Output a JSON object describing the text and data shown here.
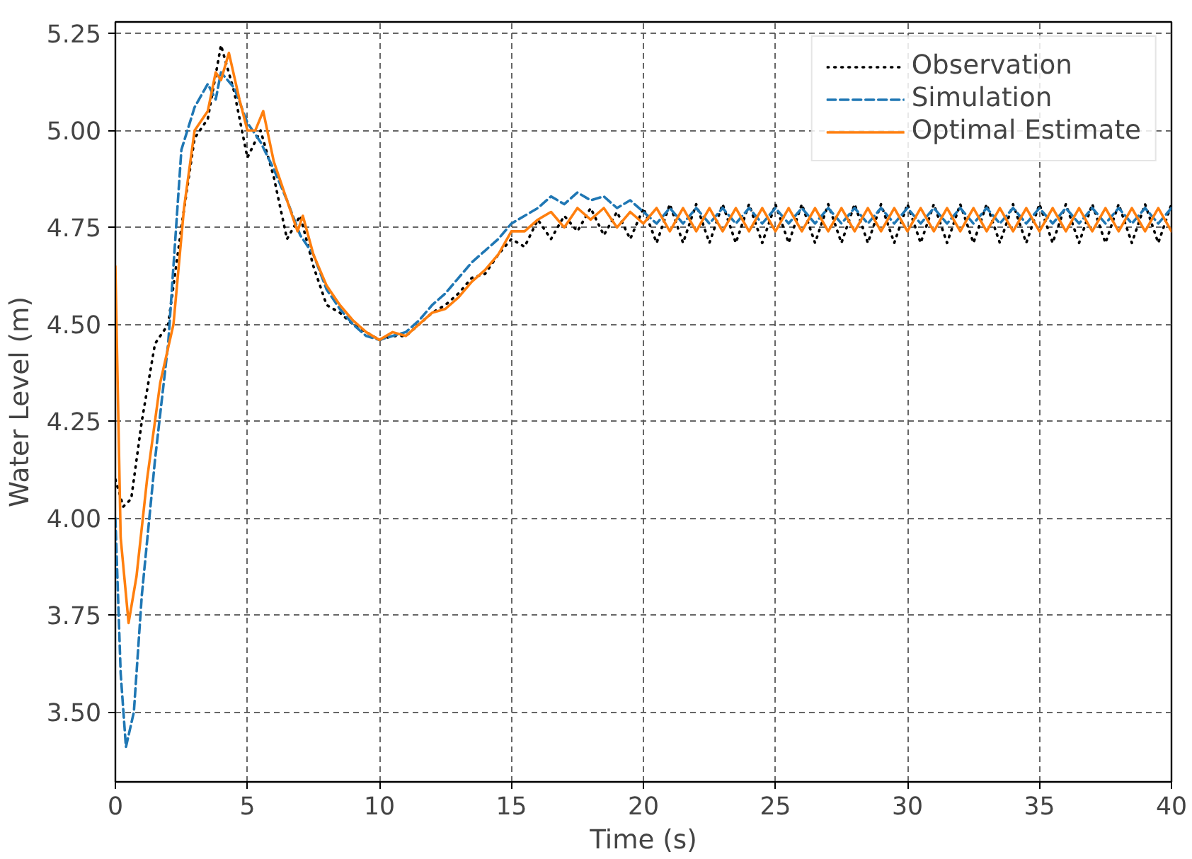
{
  "chart_data": {
    "type": "line",
    "xlabel": "Time (s)",
    "ylabel": "Water Level (m)",
    "xlim": [
      0,
      40
    ],
    "ylim": [
      3.32,
      5.28
    ],
    "xticks": [
      0,
      5,
      10,
      15,
      20,
      25,
      30,
      35,
      40
    ],
    "yticks": [
      {
        "value": 3.5,
        "label": "3.50"
      },
      {
        "value": 3.75,
        "label": "3.75"
      },
      {
        "value": 4.0,
        "label": "4.00"
      },
      {
        "value": 4.25,
        "label": "4.25"
      },
      {
        "value": 4.5,
        "label": "4.50"
      },
      {
        "value": 4.75,
        "label": "4.75"
      },
      {
        "value": 5.0,
        "label": "5.00"
      },
      {
        "value": 5.25,
        "label": "5.25"
      }
    ],
    "grid": true,
    "legend": "top right",
    "series": [
      {
        "name": "Observation",
        "color": "#000000",
        "line_style": "dotted",
        "x": [
          0,
          0.3,
          0.6,
          1,
          1.5,
          2,
          2.5,
          3,
          3.5,
          4,
          4.5,
          5,
          5.5,
          6,
          6.5,
          7,
          7.5,
          8,
          8.5,
          9,
          9.5,
          10,
          10.5,
          11,
          11.5,
          12,
          12.5,
          13,
          13.5,
          14,
          14.5,
          15,
          15.5,
          16,
          16.5,
          17,
          17.5,
          18,
          18.5,
          19,
          19.5,
          20,
          20.5,
          21,
          21.5,
          22,
          22.5,
          23,
          23.5,
          24,
          24.5,
          25,
          25.5,
          26,
          26.5,
          27,
          27.5,
          28,
          28.5,
          29,
          29.5,
          30,
          30.5,
          31,
          31.5,
          32,
          32.5,
          33,
          33.5,
          34,
          34.5,
          35,
          35.5,
          36,
          36.5,
          37,
          37.5,
          38,
          38.5,
          39,
          39.5,
          40
        ],
        "values": [
          4.1,
          4.03,
          4.05,
          4.25,
          4.45,
          4.5,
          4.75,
          4.98,
          5.03,
          5.22,
          5.1,
          4.93,
          5.0,
          4.88,
          4.72,
          4.78,
          4.65,
          4.55,
          4.53,
          4.5,
          4.48,
          4.46,
          4.47,
          4.47,
          4.5,
          4.53,
          4.55,
          4.58,
          4.62,
          4.63,
          4.68,
          4.72,
          4.7,
          4.77,
          4.72,
          4.78,
          4.74,
          4.8,
          4.73,
          4.79,
          4.72,
          4.8,
          4.71,
          4.81,
          4.71,
          4.81,
          4.71,
          4.81,
          4.71,
          4.81,
          4.71,
          4.81,
          4.71,
          4.81,
          4.71,
          4.81,
          4.71,
          4.81,
          4.71,
          4.81,
          4.71,
          4.81,
          4.71,
          4.81,
          4.71,
          4.81,
          4.71,
          4.81,
          4.71,
          4.81,
          4.71,
          4.81,
          4.71,
          4.81,
          4.71,
          4.81,
          4.71,
          4.81,
          4.71,
          4.81,
          4.71,
          4.81
        ]
      },
      {
        "name": "Simulation",
        "color": "#1f77b4",
        "line_style": "dashed",
        "x": [
          0,
          0.2,
          0.4,
          0.7,
          1,
          1.5,
          2,
          2.5,
          3,
          3.5,
          3.8,
          4,
          4.5,
          5,
          5.5,
          6,
          6.5,
          7,
          7.5,
          8,
          8.5,
          9,
          9.5,
          10,
          10.5,
          11,
          11.5,
          12,
          12.5,
          13,
          13.5,
          14,
          14.5,
          15,
          15.5,
          16,
          16.5,
          17,
          17.5,
          18,
          18.5,
          19,
          19.5,
          20,
          20.5,
          21,
          21.5,
          22,
          22.5,
          23,
          23.5,
          24,
          24.5,
          25,
          25.5,
          26,
          26.5,
          27,
          27.5,
          28,
          28.5,
          29,
          29.5,
          30,
          30.5,
          31,
          31.5,
          32,
          32.5,
          33,
          33.5,
          34,
          34.5,
          35,
          35.5,
          36,
          36.5,
          37,
          37.5,
          38,
          38.5,
          39,
          39.5,
          40
        ],
        "values": [
          4.0,
          3.6,
          3.41,
          3.5,
          3.8,
          4.15,
          4.45,
          4.95,
          5.06,
          5.12,
          5.08,
          5.15,
          5.11,
          5.02,
          4.97,
          4.9,
          4.82,
          4.73,
          4.68,
          4.59,
          4.54,
          4.5,
          4.47,
          4.46,
          4.47,
          4.48,
          4.51,
          4.55,
          4.58,
          4.62,
          4.66,
          4.69,
          4.72,
          4.76,
          4.78,
          4.8,
          4.83,
          4.81,
          4.84,
          4.82,
          4.83,
          4.8,
          4.82,
          4.79,
          4.76,
          4.8,
          4.76,
          4.8,
          4.76,
          4.8,
          4.76,
          4.8,
          4.76,
          4.8,
          4.76,
          4.8,
          4.76,
          4.8,
          4.76,
          4.8,
          4.76,
          4.8,
          4.76,
          4.8,
          4.76,
          4.8,
          4.76,
          4.8,
          4.76,
          4.8,
          4.76,
          4.8,
          4.76,
          4.8,
          4.76,
          4.8,
          4.76,
          4.8,
          4.76,
          4.8,
          4.76,
          4.8,
          4.76,
          4.8
        ]
      },
      {
        "name": "Optimal Estimate",
        "color": "#ff7f0e",
        "line_style": "solid",
        "x": [
          0,
          0.2,
          0.5,
          0.8,
          1.2,
          1.7,
          2.2,
          2.6,
          3,
          3.5,
          3.8,
          4,
          4.3,
          4.7,
          5,
          5.3,
          5.6,
          6,
          6.5,
          6.9,
          7.1,
          7.5,
          8,
          8.5,
          9,
          9.5,
          10,
          10.5,
          11,
          11.5,
          12,
          12.5,
          13,
          13.5,
          14,
          14.5,
          15,
          15.5,
          16,
          16.5,
          17,
          17.5,
          18,
          18.5,
          19,
          19.5,
          20,
          20.5,
          21,
          21.5,
          22,
          22.5,
          23,
          23.5,
          24,
          24.5,
          25,
          25.5,
          26,
          26.5,
          27,
          27.5,
          28,
          28.5,
          29,
          29.5,
          30,
          30.5,
          31,
          31.5,
          32,
          32.5,
          33,
          33.5,
          34,
          34.5,
          35,
          35.5,
          36,
          36.5,
          37,
          37.5,
          38,
          38.5,
          39,
          39.5,
          40
        ],
        "values": [
          4.65,
          3.95,
          3.73,
          3.85,
          4.1,
          4.35,
          4.5,
          4.8,
          5.0,
          5.05,
          5.15,
          5.13,
          5.2,
          5.08,
          5.0,
          5.0,
          5.05,
          4.92,
          4.82,
          4.74,
          4.78,
          4.68,
          4.6,
          4.55,
          4.51,
          4.48,
          4.46,
          4.48,
          4.47,
          4.5,
          4.53,
          4.54,
          4.57,
          4.61,
          4.64,
          4.68,
          4.74,
          4.74,
          4.77,
          4.79,
          4.75,
          4.8,
          4.77,
          4.8,
          4.75,
          4.79,
          4.76,
          4.8,
          4.74,
          4.8,
          4.74,
          4.8,
          4.74,
          4.8,
          4.74,
          4.8,
          4.74,
          4.8,
          4.74,
          4.8,
          4.74,
          4.8,
          4.74,
          4.8,
          4.74,
          4.8,
          4.74,
          4.8,
          4.74,
          4.8,
          4.74,
          4.8,
          4.74,
          4.8,
          4.74,
          4.8,
          4.74,
          4.8,
          4.74,
          4.8,
          4.74,
          4.8,
          4.74,
          4.8,
          4.74,
          4.8,
          4.74
        ]
      }
    ]
  }
}
